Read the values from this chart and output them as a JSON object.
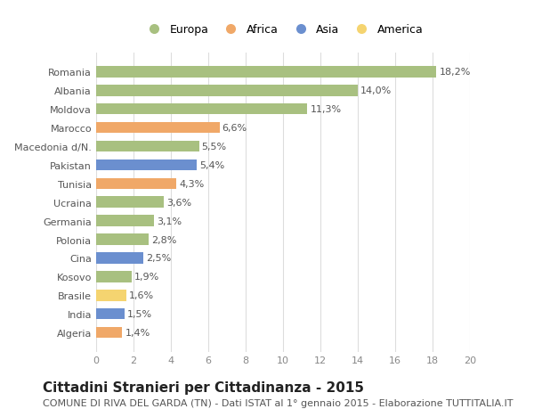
{
  "categories": [
    "Algeria",
    "India",
    "Brasile",
    "Kosovo",
    "Cina",
    "Polonia",
    "Germania",
    "Ucraina",
    "Tunisia",
    "Pakistan",
    "Macedonia d/N.",
    "Marocco",
    "Moldova",
    "Albania",
    "Romania"
  ],
  "values": [
    1.4,
    1.5,
    1.6,
    1.9,
    2.5,
    2.8,
    3.1,
    3.6,
    4.3,
    5.4,
    5.5,
    6.6,
    11.3,
    14.0,
    18.2
  ],
  "labels": [
    "1,4%",
    "1,5%",
    "1,6%",
    "1,9%",
    "2,5%",
    "2,8%",
    "3,1%",
    "3,6%",
    "4,3%",
    "5,4%",
    "5,5%",
    "6,6%",
    "11,3%",
    "14,0%",
    "18,2%"
  ],
  "colors": [
    "#f0a868",
    "#6b8fcf",
    "#f5d470",
    "#a8c080",
    "#6b8fcf",
    "#a8c080",
    "#a8c080",
    "#a8c080",
    "#f0a868",
    "#6b8fcf",
    "#a8c080",
    "#f0a868",
    "#a8c080",
    "#a8c080",
    "#a8c080"
  ],
  "legend_labels": [
    "Europa",
    "Africa",
    "Asia",
    "America"
  ],
  "legend_colors": [
    "#a8c080",
    "#f0a868",
    "#6b8fcf",
    "#f5d470"
  ],
  "title": "Cittadini Stranieri per Cittadinanza - 2015",
  "subtitle": "COMUNE DI RIVA DEL GARDA (TN) - Dati ISTAT al 1° gennaio 2015 - Elaborazione TUTTITALIA.IT",
  "xlim": [
    0,
    20
  ],
  "xticks": [
    0,
    2,
    4,
    6,
    8,
    10,
    12,
    14,
    16,
    18,
    20
  ],
  "bg_color": "#ffffff",
  "grid_color": "#dddddd",
  "bar_height": 0.6,
  "title_fontsize": 11,
  "subtitle_fontsize": 8,
  "label_fontsize": 8,
  "tick_fontsize": 8,
  "legend_fontsize": 9
}
